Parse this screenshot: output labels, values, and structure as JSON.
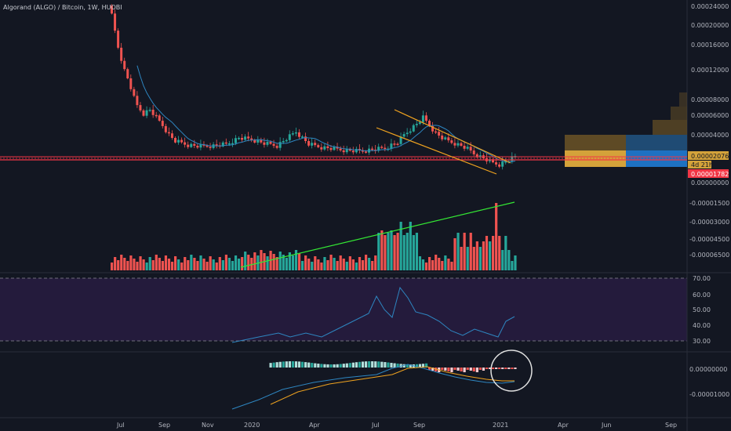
{
  "chart_data": {
    "type": "candlestick",
    "title": "Algorand (ALGO) / Bitcoin, 1W, HUOBI",
    "x_tick_labels": [
      "Jul",
      "Sep",
      "Nov",
      "2020",
      "Apr",
      "Jul",
      "Sep",
      "2021",
      "Apr",
      "Jun",
      "Sep"
    ],
    "price_axis": {
      "tick_labels": [
        "0.00024000",
        "0.00020000",
        "0.00016000",
        "0.00012000",
        "0.00008000",
        "0.00006000",
        "0.00004000",
        "0.00002076",
        "0.00000000"
      ],
      "current_price_label": "0.00002076",
      "countdown_label": "4d 21h",
      "horizontal_line_label": "0.00001782",
      "price_color": "#d4a23a",
      "line_color": "#f23645"
    },
    "volume_axis": {
      "tick_labels": [
        "-0.00001500",
        "-0.00003000",
        "-0.00004500",
        "-0.00006500"
      ]
    },
    "rsi_axis": {
      "tick_labels": [
        "70.00",
        "60.00",
        "50.00",
        "40.00",
        "30.00"
      ],
      "upper": 70,
      "lower": 30,
      "band_color": "#241b3c",
      "line_color": "#2e86c1"
    },
    "macd_axis": {
      "tick_labels": [
        "0.00000000",
        "-0.00001000"
      ]
    },
    "colors": {
      "up": "#26a69a",
      "down": "#ef5350",
      "trendline_orange": "#f0a31f",
      "trendline_green": "#34e834",
      "ma_line": "#2e86c1"
    }
  }
}
